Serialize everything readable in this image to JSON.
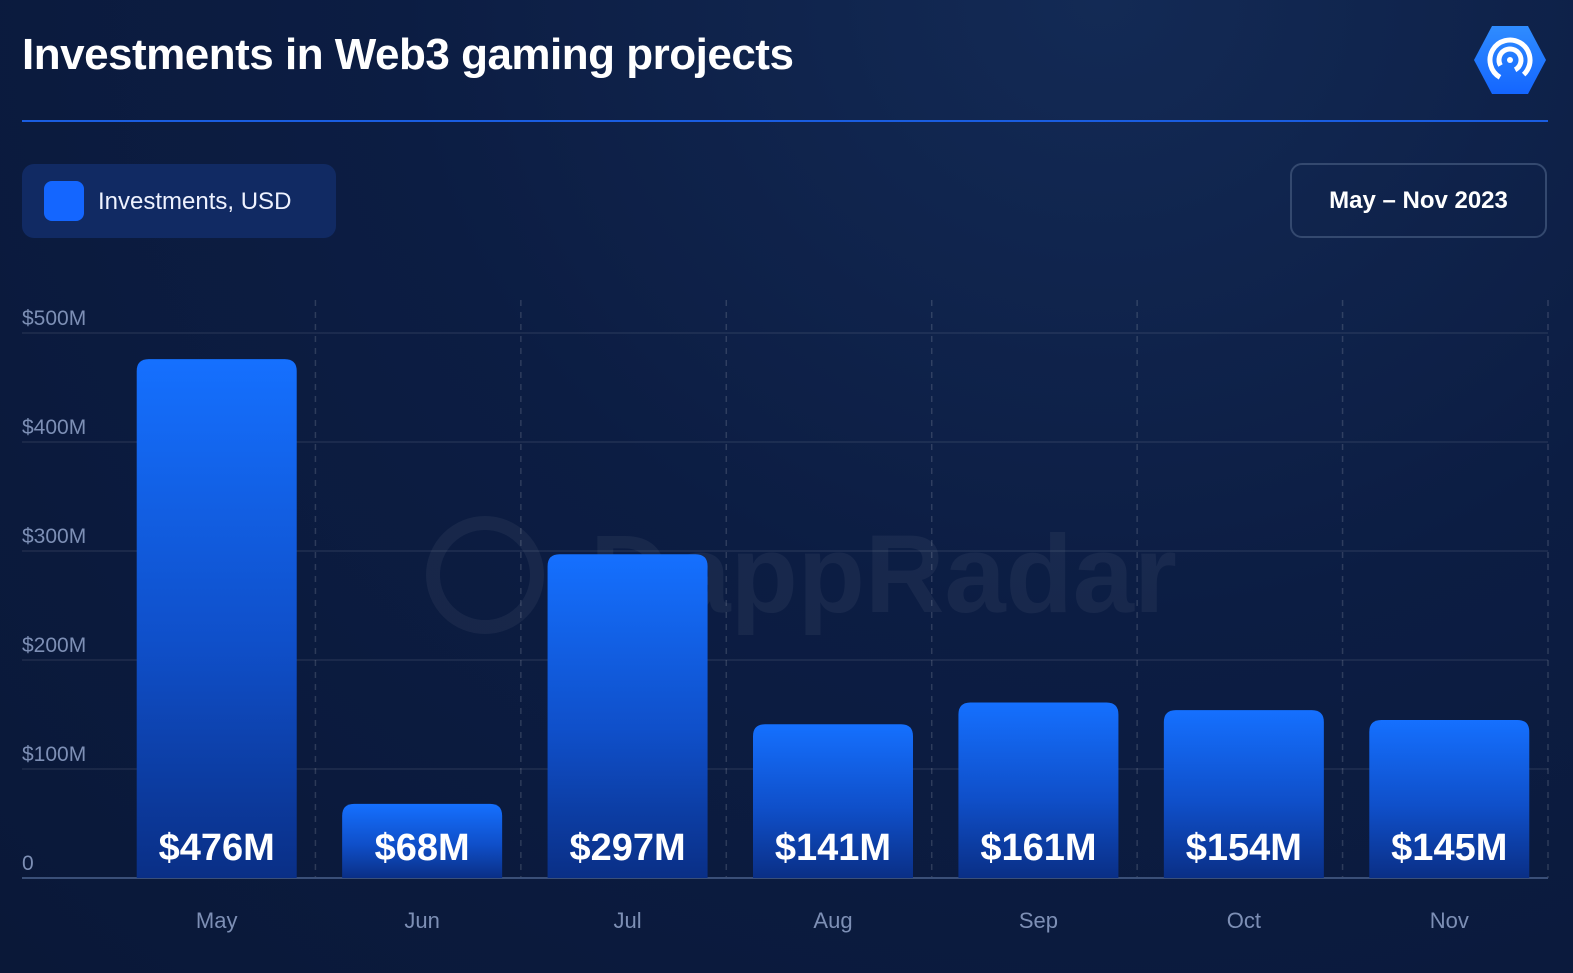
{
  "header": {
    "title": "Investments in Web3 gaming projects",
    "logo_icon": "dappradar-radar-icon"
  },
  "legend": {
    "label": "Investments, USD",
    "color": "#1466ff"
  },
  "period_label": "May – Nov 2023",
  "watermark": "DappRadar",
  "colors": {
    "background": "#0c1d43",
    "accent": "#1466ff",
    "divider": "#1a5de0",
    "tick_text": "#7d8fb5"
  },
  "chart_data": {
    "type": "bar",
    "title": "Investments in Web3 gaming projects",
    "categories": [
      "May",
      "Jun",
      "Jul",
      "Aug",
      "Sep",
      "Oct",
      "Nov"
    ],
    "series": [
      {
        "name": "Investments, USD",
        "values": [
          476,
          68,
          297,
          141,
          161,
          154,
          145
        ]
      }
    ],
    "data_labels": [
      "$476M",
      "$68M",
      "$297M",
      "$141M",
      "$161M",
      "$154M",
      "$145M"
    ],
    "yticks": [
      {
        "value": 0,
        "label": "0"
      },
      {
        "value": 100,
        "label": "$100M"
      },
      {
        "value": 200,
        "label": "$200M"
      },
      {
        "value": 300,
        "label": "$300M"
      },
      {
        "value": 400,
        "label": "$400M"
      },
      {
        "value": 500,
        "label": "$500M"
      }
    ],
    "ylim": [
      0,
      500
    ],
    "xlabel": "",
    "ylabel": "",
    "grid": true,
    "legend_position": "top-left"
  }
}
